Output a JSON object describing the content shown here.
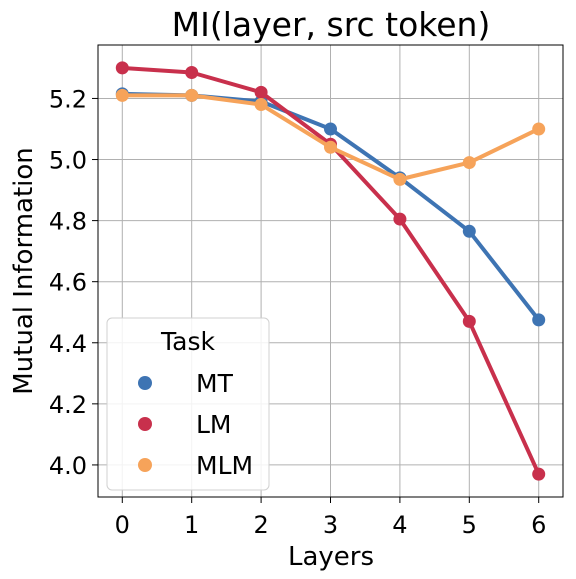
{
  "chart_data": {
    "type": "line",
    "title": "MI(layer, src token)",
    "xlabel": "Layers",
    "ylabel": "Mutual Information",
    "x": [
      0,
      1,
      2,
      3,
      4,
      5,
      6
    ],
    "xlim": [
      -0.35,
      6.35
    ],
    "ylim": [
      3.895,
      5.375
    ],
    "yticks": [
      4.0,
      4.2,
      4.4,
      4.6,
      4.8,
      5.0,
      5.2
    ],
    "yticklabels": [
      "4.0",
      "4.2",
      "4.4",
      "4.6",
      "4.8",
      "5.0",
      "5.2"
    ],
    "grid": true,
    "legend": {
      "title": "Task",
      "placement": "lower-left"
    },
    "series": [
      {
        "name": "MT",
        "color": "#3e74b3",
        "values": [
          5.215,
          5.21,
          5.19,
          5.1,
          4.94,
          4.765,
          4.475
        ]
      },
      {
        "name": "LM",
        "color": "#c8304c",
        "values": [
          5.3,
          5.285,
          5.22,
          5.05,
          4.805,
          4.47,
          3.97
        ]
      },
      {
        "name": "MLM",
        "color": "#f6a35a",
        "values": [
          5.21,
          5.21,
          5.18,
          5.04,
          4.935,
          4.99,
          5.1
        ]
      }
    ]
  }
}
